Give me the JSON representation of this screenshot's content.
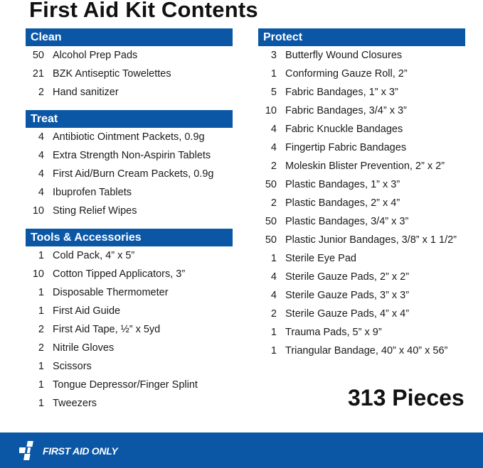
{
  "title": "First Aid Kit Contents",
  "sections_left": [
    {
      "name": "Clean",
      "items": [
        {
          "qty": "50",
          "name": "Alcohol Prep Pads"
        },
        {
          "qty": "21",
          "name": "BZK Antiseptic Towelettes"
        },
        {
          "qty": "2",
          "name": "Hand sanitizer"
        }
      ]
    },
    {
      "name": "Treat",
      "items": [
        {
          "qty": "4",
          "name": "Antibiotic Ointment Packets, 0.9g"
        },
        {
          "qty": "4",
          "name": "Extra Strength Non-Aspirin Tablets"
        },
        {
          "qty": "4",
          "name": "First Aid/Burn Cream Packets, 0.9g"
        },
        {
          "qty": "4",
          "name": "Ibuprofen Tablets"
        },
        {
          "qty": "10",
          "name": "Sting Relief Wipes"
        }
      ]
    },
    {
      "name": "Tools & Accessories",
      "items": [
        {
          "qty": "1",
          "name": "Cold Pack, 4” x 5”"
        },
        {
          "qty": "10",
          "name": "Cotton Tipped Applicators, 3”"
        },
        {
          "qty": "1",
          "name": "Disposable Thermometer"
        },
        {
          "qty": "1",
          "name": "First Aid Guide"
        },
        {
          "qty": "2",
          "name": "First Aid Tape, ½” x 5yd"
        },
        {
          "qty": "2",
          "name": "Nitrile Gloves"
        },
        {
          "qty": "1",
          "name": "Scissors"
        },
        {
          "qty": "1",
          "name": "Tongue Depressor/Finger Splint"
        },
        {
          "qty": "1",
          "name": "Tweezers"
        }
      ]
    }
  ],
  "sections_right": [
    {
      "name": "Protect",
      "items": [
        {
          "qty": "3",
          "name": "Butterfly Wound Closures"
        },
        {
          "qty": "1",
          "name": "Conforming Gauze Roll, 2”"
        },
        {
          "qty": "5",
          "name": "Fabric Bandages, 1” x 3”"
        },
        {
          "qty": "10",
          "name": "Fabric Bandages, 3/4” x 3”"
        },
        {
          "qty": "4",
          "name": "Fabric Knuckle Bandages"
        },
        {
          "qty": "4",
          "name": "Fingertip Fabric Bandages"
        },
        {
          "qty": "2",
          "name": "Moleskin Blister Prevention, 2” x 2”"
        },
        {
          "qty": "50",
          "name": "Plastic Bandages, 1” x 3”"
        },
        {
          "qty": "2",
          "name": "Plastic Bandages, 2” x 4”"
        },
        {
          "qty": "50",
          "name": "Plastic Bandages, 3/4” x 3”"
        },
        {
          "qty": "50",
          "name": "Plastic Junior Bandages, 3/8” x 1 1/2”"
        },
        {
          "qty": "1",
          "name": "Sterile Eye Pad"
        },
        {
          "qty": "4",
          "name": "Sterile Gauze Pads, 2” x 2”"
        },
        {
          "qty": "4",
          "name": "Sterile Gauze Pads, 3” x 3”"
        },
        {
          "qty": "2",
          "name": "Sterile Gauze Pads, 4” x 4”"
        },
        {
          "qty": "1",
          "name": "Trauma Pads, 5” x 9”"
        },
        {
          "qty": "1",
          "name": "Triangular Bandage, 40” x 40” x 56”"
        }
      ]
    }
  ],
  "total": "313 Pieces",
  "brand": "FIRST AID ONLY",
  "colors": {
    "header_bg": "#0b57a6",
    "footer_bg": "#0b57a6"
  }
}
